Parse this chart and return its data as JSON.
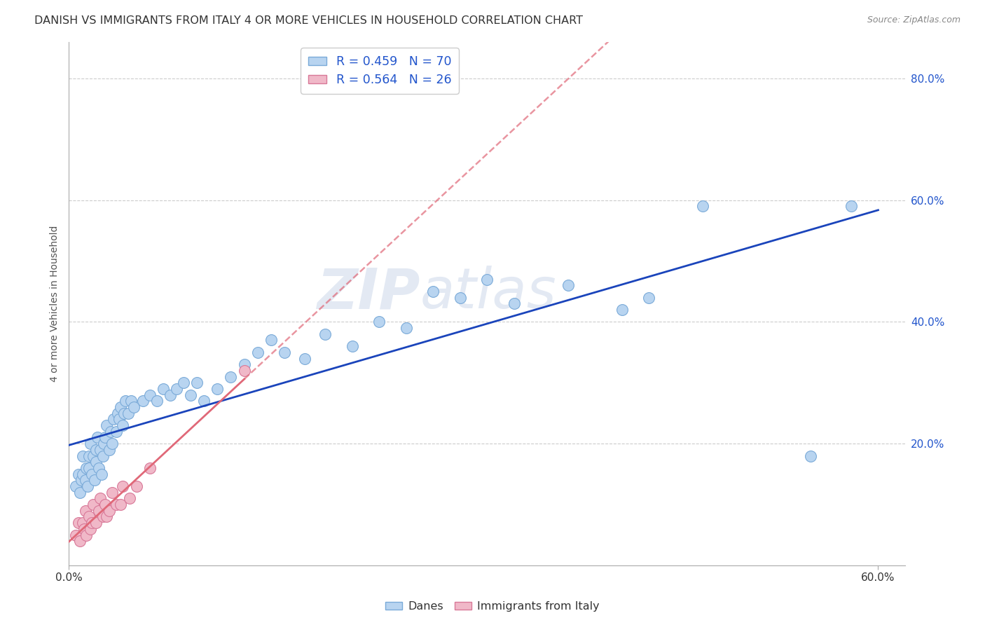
{
  "title": "DANISH VS IMMIGRANTS FROM ITALY 4 OR MORE VEHICLES IN HOUSEHOLD CORRELATION CHART",
  "source": "Source: ZipAtlas.com",
  "ylabel": "4 or more Vehicles in Household",
  "xlim": [
    0.0,
    0.62
  ],
  "ylim": [
    0.0,
    0.86
  ],
  "x_tick_positions": [
    0.0,
    0.6
  ],
  "x_tick_labels": [
    "0.0%",
    "60.0%"
  ],
  "y_tick_positions": [
    0.0,
    0.2,
    0.4,
    0.6,
    0.8
  ],
  "y_tick_labels": [
    "",
    "20.0%",
    "40.0%",
    "60.0%",
    "80.0%"
  ],
  "danes_color": "#b8d4f0",
  "danes_edge_color": "#7aaad8",
  "italy_color": "#f0b8c8",
  "italy_edge_color": "#d87898",
  "danes_line_color": "#1a44bb",
  "italy_line_color": "#e06878",
  "italy_line_color_dash": "#e06878",
  "legend_label_danes": "R = 0.459   N = 70",
  "legend_label_italy": "R = 0.564   N = 26",
  "bottom_legend_danes": "Danes",
  "bottom_legend_italy": "Immigrants from Italy",
  "danes_x": [
    0.005,
    0.007,
    0.008,
    0.009,
    0.01,
    0.01,
    0.012,
    0.013,
    0.014,
    0.015,
    0.015,
    0.016,
    0.017,
    0.018,
    0.019,
    0.02,
    0.02,
    0.021,
    0.022,
    0.023,
    0.024,
    0.025,
    0.026,
    0.027,
    0.028,
    0.03,
    0.031,
    0.032,
    0.033,
    0.035,
    0.036,
    0.037,
    0.038,
    0.04,
    0.041,
    0.042,
    0.044,
    0.046,
    0.048,
    0.055,
    0.06,
    0.065,
    0.07,
    0.075,
    0.08,
    0.085,
    0.09,
    0.095,
    0.1,
    0.11,
    0.12,
    0.13,
    0.14,
    0.15,
    0.16,
    0.175,
    0.19,
    0.21,
    0.23,
    0.25,
    0.27,
    0.29,
    0.31,
    0.33,
    0.37,
    0.41,
    0.43,
    0.47,
    0.55,
    0.58
  ],
  "danes_y": [
    0.13,
    0.15,
    0.12,
    0.14,
    0.15,
    0.18,
    0.14,
    0.16,
    0.13,
    0.16,
    0.18,
    0.2,
    0.15,
    0.18,
    0.14,
    0.17,
    0.19,
    0.21,
    0.16,
    0.19,
    0.15,
    0.18,
    0.2,
    0.21,
    0.23,
    0.19,
    0.22,
    0.2,
    0.24,
    0.22,
    0.25,
    0.24,
    0.26,
    0.23,
    0.25,
    0.27,
    0.25,
    0.27,
    0.26,
    0.27,
    0.28,
    0.27,
    0.29,
    0.28,
    0.29,
    0.3,
    0.28,
    0.3,
    0.27,
    0.29,
    0.31,
    0.33,
    0.35,
    0.37,
    0.35,
    0.34,
    0.38,
    0.36,
    0.4,
    0.39,
    0.45,
    0.44,
    0.47,
    0.43,
    0.46,
    0.42,
    0.44,
    0.59,
    0.18,
    0.59
  ],
  "italy_x": [
    0.005,
    0.007,
    0.008,
    0.01,
    0.011,
    0.012,
    0.013,
    0.015,
    0.016,
    0.017,
    0.018,
    0.02,
    0.022,
    0.023,
    0.025,
    0.027,
    0.028,
    0.03,
    0.032,
    0.035,
    0.038,
    0.04,
    0.045,
    0.05,
    0.06,
    0.13
  ],
  "italy_y": [
    0.05,
    0.07,
    0.04,
    0.07,
    0.06,
    0.09,
    0.05,
    0.08,
    0.06,
    0.07,
    0.1,
    0.07,
    0.09,
    0.11,
    0.08,
    0.1,
    0.08,
    0.09,
    0.12,
    0.1,
    0.1,
    0.13,
    0.11,
    0.13,
    0.16,
    0.32
  ],
  "watermark_zip": "ZIP",
  "watermark_atlas": "atlas",
  "background_color": "#ffffff",
  "grid_color": "#cccccc",
  "grid_style": "--"
}
